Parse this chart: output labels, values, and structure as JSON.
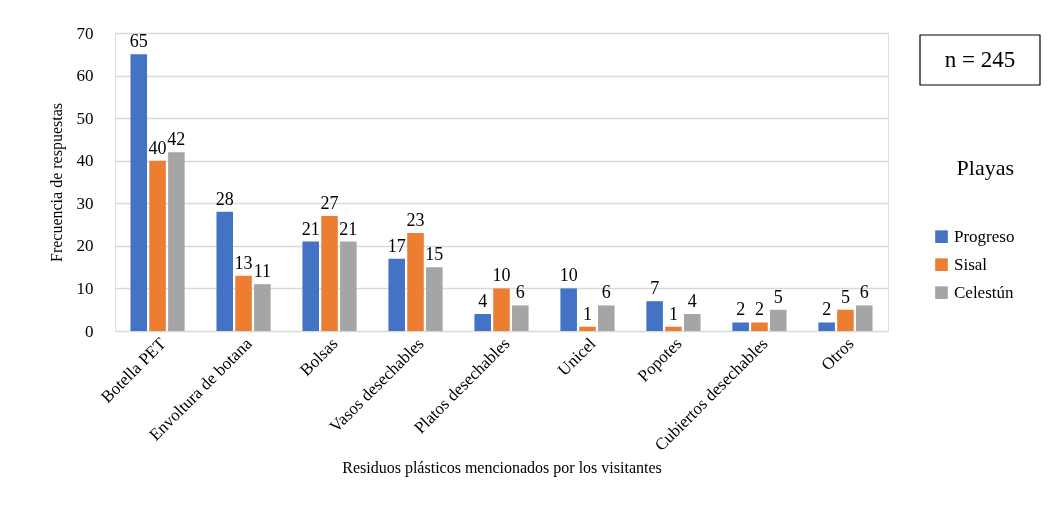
{
  "chart_data": {
    "type": "bar",
    "xlabel": "Residuos plásticos mencionados por los visitantes",
    "ylabel": "Frecuencia de respuestas",
    "legend_title": "Playas",
    "annotations": [
      "n = 245"
    ],
    "categories": [
      "Botella PET",
      "Envoltura de botana",
      "Bolsas",
      "Vasos desechables",
      "Platos desechables",
      "Unicel",
      "Popotes",
      "Cubiertos desechables",
      "Otros"
    ],
    "series": [
      {
        "name": "Progreso",
        "color": "#4472c4",
        "values": [
          65,
          28,
          21,
          17,
          4,
          10,
          7,
          2,
          2
        ]
      },
      {
        "name": "Sisal",
        "color": "#ed7d31",
        "values": [
          40,
          13,
          27,
          23,
          10,
          1,
          1,
          2,
          5
        ]
      },
      {
        "name": "Celestún",
        "color": "#a5a5a5",
        "values": [
          42,
          11,
          21,
          15,
          6,
          6,
          4,
          5,
          6
        ]
      }
    ],
    "ylim": [
      0,
      70
    ],
    "yticks": [
      0,
      10,
      20,
      30,
      40,
      50,
      60,
      70
    ],
    "grid": "y",
    "legend": "right",
    "data_labels": true
  }
}
